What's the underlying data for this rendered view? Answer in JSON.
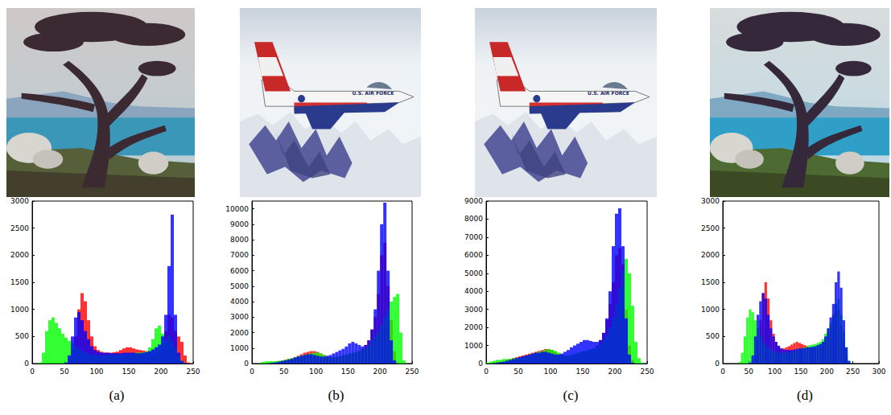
{
  "chart_data": [
    {
      "type": "histogram",
      "title": "(a)",
      "grid": false,
      "bins": [
        0,
        5,
        10,
        15,
        20,
        25,
        30,
        35,
        40,
        45,
        50,
        55,
        60,
        65,
        70,
        75,
        80,
        85,
        90,
        95,
        100,
        105,
        110,
        115,
        120,
        125,
        130,
        135,
        140,
        145,
        150,
        155,
        160,
        165,
        170,
        175,
        180,
        185,
        190,
        195,
        200,
        205,
        210,
        215,
        220,
        225,
        230,
        235,
        240,
        245,
        250
      ],
      "xlim": [
        0,
        250
      ],
      "xticks": [
        0,
        50,
        100,
        150,
        200,
        250
      ],
      "ylim": [
        0,
        3000
      ],
      "yticks": [
        0,
        500,
        1000,
        1500,
        2000,
        2500,
        3000
      ],
      "series": [
        {
          "color": "#ff0000",
          "values": [
            0,
            0,
            0,
            0,
            0,
            0,
            0,
            0,
            0,
            0,
            10,
            80,
            250,
            500,
            1000,
            1300,
            1150,
            800,
            500,
            320,
            250,
            220,
            200,
            200,
            200,
            210,
            220,
            250,
            280,
            300,
            300,
            280,
            260,
            250,
            240,
            230,
            220,
            200,
            200,
            220,
            350,
            600,
            900,
            850,
            600,
            500,
            400,
            150,
            20,
            0
          ]
        },
        {
          "color": "#00ff00",
          "values": [
            0,
            0,
            20,
            200,
            600,
            800,
            850,
            750,
            650,
            550,
            480,
            420,
            380,
            320,
            280,
            240,
            210,
            190,
            170,
            160,
            150,
            150,
            150,
            160,
            160,
            170,
            170,
            170,
            180,
            180,
            180,
            190,
            200,
            200,
            210,
            220,
            300,
            450,
            650,
            700,
            550,
            450,
            500,
            400,
            300,
            150,
            50,
            10,
            0,
            0
          ]
        },
        {
          "color": "#0000ff",
          "values": [
            0,
            0,
            0,
            0,
            0,
            0,
            0,
            0,
            0,
            0,
            20,
            150,
            500,
            850,
            950,
            800,
            600,
            450,
            320,
            250,
            220,
            200,
            200,
            200,
            190,
            190,
            190,
            190,
            200,
            200,
            200,
            200,
            190,
            190,
            200,
            210,
            230,
            260,
            300,
            350,
            500,
            900,
            1800,
            2750,
            900,
            200,
            50,
            10,
            0,
            0
          ]
        }
      ]
    },
    {
      "type": "histogram",
      "title": "(b)",
      "grid": false,
      "annotations": [
        "U.S. AIR FORCE"
      ],
      "bins": [
        0,
        5,
        10,
        15,
        20,
        25,
        30,
        35,
        40,
        45,
        50,
        55,
        60,
        65,
        70,
        75,
        80,
        85,
        90,
        95,
        100,
        105,
        110,
        115,
        120,
        125,
        130,
        135,
        140,
        145,
        150,
        155,
        160,
        165,
        170,
        175,
        180,
        185,
        190,
        195,
        200,
        205,
        210,
        215,
        220,
        225,
        230,
        235,
        240,
        245,
        250
      ],
      "xlim": [
        0,
        250
      ],
      "xticks": [
        0,
        50,
        100,
        150,
        200,
        250
      ],
      "ylim": [
        0,
        10500
      ],
      "yticks": [
        0,
        1000,
        2000,
        3000,
        4000,
        5000,
        6000,
        7000,
        8000,
        9000,
        10000
      ],
      "series": [
        {
          "color": "#ff0000",
          "values": [
            0,
            0,
            0,
            0,
            10,
            30,
            60,
            100,
            150,
            200,
            250,
            300,
            350,
            400,
            500,
            600,
            700,
            750,
            800,
            800,
            750,
            650,
            550,
            450,
            400,
            400,
            420,
            450,
            500,
            550,
            600,
            650,
            700,
            800,
            950,
            1200,
            1500,
            2200,
            3000,
            4500,
            7000,
            7800,
            5000,
            2800,
            800,
            100,
            0,
            0,
            0,
            0
          ]
        },
        {
          "color": "#00ff00",
          "values": [
            0,
            0,
            50,
            100,
            150,
            150,
            150,
            150,
            180,
            200,
            250,
            300,
            350,
            400,
            450,
            500,
            550,
            600,
            650,
            700,
            700,
            650,
            550,
            450,
            400,
            400,
            450,
            500,
            550,
            600,
            650,
            700,
            750,
            800,
            900,
            1000,
            1200,
            1500,
            1800,
            2100,
            2500,
            3000,
            3500,
            4000,
            4300,
            4500,
            2000,
            200,
            0,
            0
          ]
        },
        {
          "color": "#0000ff",
          "values": [
            0,
            0,
            0,
            0,
            0,
            20,
            50,
            80,
            120,
            160,
            200,
            250,
            300,
            400,
            450,
            500,
            550,
            600,
            600,
            550,
            500,
            450,
            450,
            500,
            550,
            650,
            750,
            850,
            950,
            1100,
            1300,
            1400,
            1300,
            1200,
            1100,
            1200,
            1500,
            2200,
            3500,
            6000,
            9000,
            10400,
            6000,
            1500,
            200,
            0,
            0,
            0,
            0,
            0
          ]
        }
      ]
    },
    {
      "type": "histogram",
      "title": "(c)",
      "grid": false,
      "annotations": [
        "U.S. AIR FORCE"
      ],
      "bins": [
        0,
        5,
        10,
        15,
        20,
        25,
        30,
        35,
        40,
        45,
        50,
        55,
        60,
        65,
        70,
        75,
        80,
        85,
        90,
        95,
        100,
        105,
        110,
        115,
        120,
        125,
        130,
        135,
        140,
        145,
        150,
        155,
        160,
        165,
        170,
        175,
        180,
        185,
        190,
        195,
        200,
        205,
        210,
        215,
        220,
        225,
        230,
        235,
        240,
        245,
        250
      ],
      "xlim": [
        0,
        250
      ],
      "xticks": [
        0,
        50,
        100,
        150,
        200,
        250
      ],
      "ylim": [
        0,
        9000
      ],
      "yticks": [
        0,
        1000,
        2000,
        3000,
        4000,
        5000,
        6000,
        7000,
        8000,
        9000
      ],
      "series": [
        {
          "color": "#ff0000",
          "values": [
            0,
            20,
            50,
            80,
            100,
            150,
            200,
            250,
            300,
            350,
            400,
            450,
            500,
            550,
            600,
            650,
            700,
            750,
            800,
            800,
            750,
            650,
            550,
            450,
            400,
            400,
            450,
            500,
            550,
            600,
            650,
            700,
            750,
            850,
            1000,
            1300,
            1700,
            2400,
            3300,
            4500,
            6000,
            6400,
            5500,
            3000,
            1000,
            200,
            20,
            0,
            0,
            0
          ]
        },
        {
          "color": "#00ff00",
          "values": [
            50,
            100,
            150,
            200,
            200,
            250,
            250,
            250,
            300,
            300,
            350,
            400,
            450,
            500,
            550,
            600,
            650,
            700,
            750,
            800,
            750,
            700,
            600,
            500,
            450,
            450,
            500,
            550,
            600,
            650,
            700,
            750,
            800,
            850,
            950,
            1100,
            1300,
            1600,
            2000,
            2600,
            3300,
            4200,
            5200,
            5800,
            5000,
            3200,
            1200,
            300,
            50,
            0
          ]
        },
        {
          "color": "#0000ff",
          "values": [
            0,
            0,
            20,
            50,
            80,
            100,
            150,
            200,
            250,
            300,
            350,
            400,
            450,
            500,
            550,
            600,
            600,
            650,
            650,
            600,
            550,
            500,
            500,
            550,
            650,
            750,
            900,
            1000,
            1100,
            1200,
            1300,
            1300,
            1250,
            1200,
            1200,
            1300,
            1700,
            2500,
            4000,
            6500,
            8300,
            8600,
            6500,
            2500,
            500,
            50,
            0,
            0,
            0,
            0
          ]
        }
      ]
    },
    {
      "type": "histogram",
      "title": "(d)",
      "grid": false,
      "bins": [
        0,
        5,
        10,
        15,
        20,
        25,
        30,
        35,
        40,
        45,
        50,
        55,
        60,
        65,
        70,
        75,
        80,
        85,
        90,
        95,
        100,
        105,
        110,
        115,
        120,
        125,
        130,
        135,
        140,
        145,
        150,
        155,
        160,
        165,
        170,
        175,
        180,
        185,
        190,
        195,
        200,
        205,
        210,
        215,
        220,
        225,
        230,
        235,
        240,
        245,
        250
      ],
      "xlim": [
        0,
        300
      ],
      "xticks": [
        0,
        50,
        100,
        150,
        200,
        250,
        300
      ],
      "ylim": [
        0,
        3000
      ],
      "yticks": [
        0,
        500,
        1000,
        1500,
        2000,
        2500,
        3000
      ],
      "series": [
        {
          "color": "#ff0000",
          "values": [
            0,
            0,
            0,
            0,
            0,
            0,
            0,
            0,
            0,
            0,
            0,
            30,
            150,
            400,
            800,
            1300,
            1500,
            1200,
            800,
            550,
            400,
            320,
            280,
            280,
            300,
            320,
            350,
            380,
            400,
            380,
            360,
            340,
            320,
            300,
            300,
            300,
            320,
            350,
            400,
            450,
            550,
            700,
            900,
            1100,
            1000,
            700,
            400,
            150,
            20,
            0
          ]
        },
        {
          "color": "#00ff00",
          "values": [
            0,
            0,
            0,
            0,
            0,
            0,
            30,
            200,
            500,
            850,
            1000,
            950,
            800,
            650,
            500,
            400,
            350,
            300,
            260,
            230,
            210,
            200,
            200,
            200,
            200,
            210,
            220,
            230,
            250,
            270,
            280,
            300,
            320,
            340,
            350,
            360,
            380,
            400,
            450,
            550,
            650,
            750,
            900,
            1100,
            1200,
            900,
            600,
            300,
            50,
            0
          ]
        },
        {
          "color": "#0000ff",
          "values": [
            0,
            0,
            0,
            0,
            0,
            0,
            0,
            0,
            0,
            0,
            20,
            150,
            500,
            900,
            1150,
            1300,
            1200,
            900,
            650,
            500,
            400,
            330,
            280,
            260,
            250,
            250,
            250,
            260,
            270,
            280,
            280,
            290,
            300,
            300,
            310,
            320,
            340,
            360,
            400,
            500,
            650,
            850,
            1100,
            1500,
            1700,
            1400,
            800,
            300,
            50,
            0
          ]
        }
      ]
    }
  ]
}
